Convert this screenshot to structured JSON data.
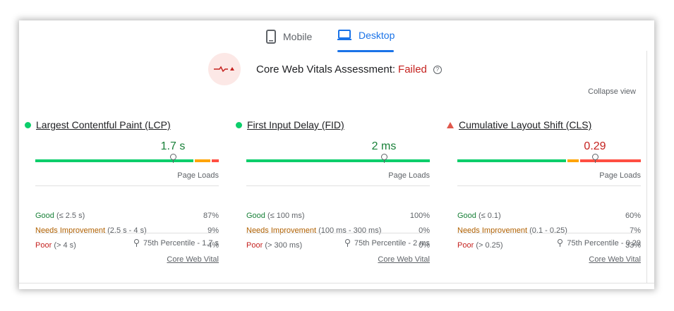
{
  "tabs": [
    {
      "label": "Mobile",
      "icon": "smartphone-icon",
      "active": false
    },
    {
      "label": "Desktop",
      "icon": "laptop-icon",
      "active": true
    }
  ],
  "assessment": {
    "label": "Core Web Vitals Assessment:",
    "status": "Failed",
    "help": "?"
  },
  "collapse_label": "Collapse view",
  "colors": {
    "good": "#0cce6b",
    "needs_improvement": "#ffa400",
    "poor": "#ff4e42",
    "accent": "#1a73e8",
    "failed": "#c5221f"
  },
  "metrics": [
    {
      "title": "Largest Contentful Paint (LCP)",
      "indicator": "good",
      "value": "1.7 s",
      "marker_fraction": 0.75,
      "page_loads_label": "Page Loads",
      "distribution": {
        "good": 87,
        "needs_improvement": 9,
        "poor": 4
      },
      "rows": [
        {
          "label": "Good",
          "range": "(≤ 2.5 s)",
          "pct": "87%"
        },
        {
          "label": "Needs Improvement",
          "range": "(2.5 s - 4 s)",
          "pct": "9%"
        },
        {
          "label": "Poor",
          "range": "(> 4 s)",
          "pct": "4%"
        }
      ],
      "percentile": "75th Percentile - 1.7 s",
      "link": "Core Web Vital"
    },
    {
      "title": "First Input Delay (FID)",
      "indicator": "good",
      "value": "2 ms",
      "marker_fraction": 0.75,
      "page_loads_label": "Page Loads",
      "distribution": {
        "good": 100,
        "needs_improvement": 0,
        "poor": 0
      },
      "rows": [
        {
          "label": "Good",
          "range": "(≤ 100 ms)",
          "pct": "100%"
        },
        {
          "label": "Needs Improvement",
          "range": "(100 ms - 300 ms)",
          "pct": "0%"
        },
        {
          "label": "Poor",
          "range": "(> 300 ms)",
          "pct": "0%"
        }
      ],
      "percentile": "75th Percentile - 2 ms",
      "link": "Core Web Vital"
    },
    {
      "title": "Cumulative Layout Shift (CLS)",
      "indicator": "poor",
      "value": "0.29",
      "marker_fraction": 0.75,
      "page_loads_label": "Page Loads",
      "distribution": {
        "good": 60,
        "needs_improvement": 7,
        "poor": 33
      },
      "rows": [
        {
          "label": "Good",
          "range": "(≤ 0.1)",
          "pct": "60%"
        },
        {
          "label": "Needs Improvement",
          "range": "(0.1 - 0.25)",
          "pct": "7%"
        },
        {
          "label": "Poor",
          "range": "(> 0.25)",
          "pct": "33%"
        }
      ],
      "percentile": "75th Percentile - 0.29",
      "link": "Core Web Vital"
    }
  ]
}
